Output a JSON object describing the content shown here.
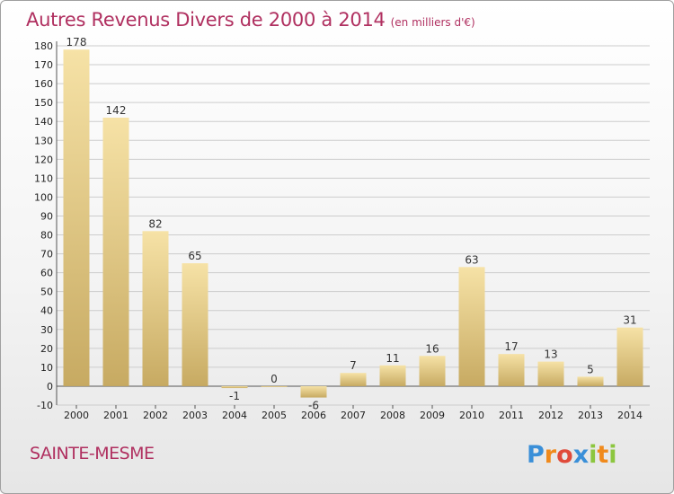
{
  "title": "Autres Revenus Divers de 2000 à 2014",
  "subtitle": "(en milliers d'€)",
  "commune": "SAINTE-MESME",
  "logo_text": "Proxiti",
  "colors": {
    "title": "#b03060",
    "bar_light": "#f6e2a6",
    "bar_dark": "#c7aa62",
    "grid": "#cccccc"
  },
  "chart_data": {
    "type": "bar",
    "title": "Autres Revenus Divers de 2000 à 2014",
    "subtitle": "(en milliers d'€)",
    "xlabel": "",
    "ylabel": "",
    "categories": [
      "2000",
      "2001",
      "2002",
      "2003",
      "2004",
      "2005",
      "2006",
      "2007",
      "2008",
      "2009",
      "2010",
      "2011",
      "2012",
      "2013",
      "2014"
    ],
    "values": [
      178,
      142,
      82,
      65,
      -1,
      0,
      -6,
      7,
      11,
      16,
      63,
      17,
      13,
      5,
      31
    ],
    "value_labels": [
      "178",
      "142",
      "82",
      "65",
      "-1",
      "0",
      "-6",
      "7",
      "11",
      "16",
      "63",
      "17",
      "13",
      "5",
      "31"
    ],
    "ylim": [
      -10,
      180
    ],
    "yticks": [
      -10,
      0,
      10,
      20,
      30,
      40,
      50,
      60,
      70,
      80,
      90,
      100,
      110,
      120,
      130,
      140,
      150,
      160,
      170,
      180
    ],
    "grid": true,
    "legend": "none"
  }
}
